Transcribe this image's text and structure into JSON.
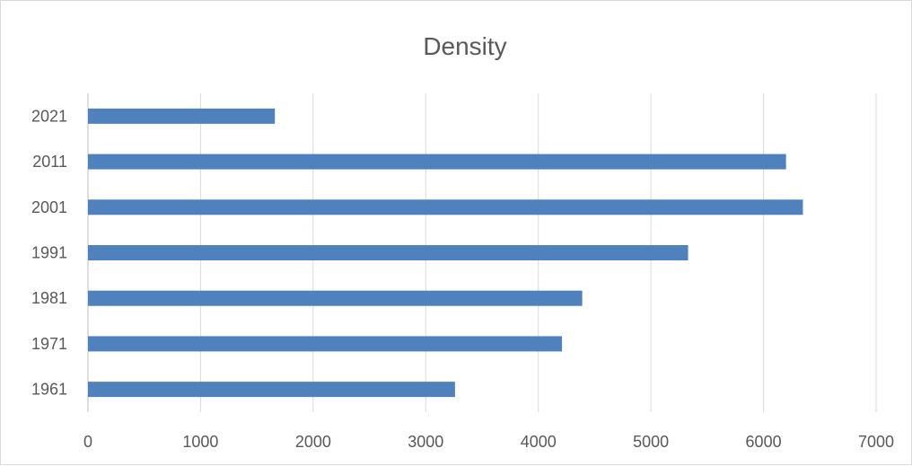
{
  "chart_data": {
    "type": "bar",
    "orientation": "horizontal",
    "title": "Density",
    "categories": [
      "1961",
      "1971",
      "1981",
      "1991",
      "2001",
      "2011",
      "2021"
    ],
    "values": [
      3260,
      4210,
      4390,
      5330,
      6350,
      6200,
      1660
    ],
    "xlim": [
      0,
      7000
    ],
    "xticks": [
      "0",
      "1000",
      "2000",
      "3000",
      "4000",
      "5000",
      "6000",
      "7000"
    ],
    "grid": "vertical",
    "legend": "none",
    "bar_color": "#4f81bd"
  }
}
